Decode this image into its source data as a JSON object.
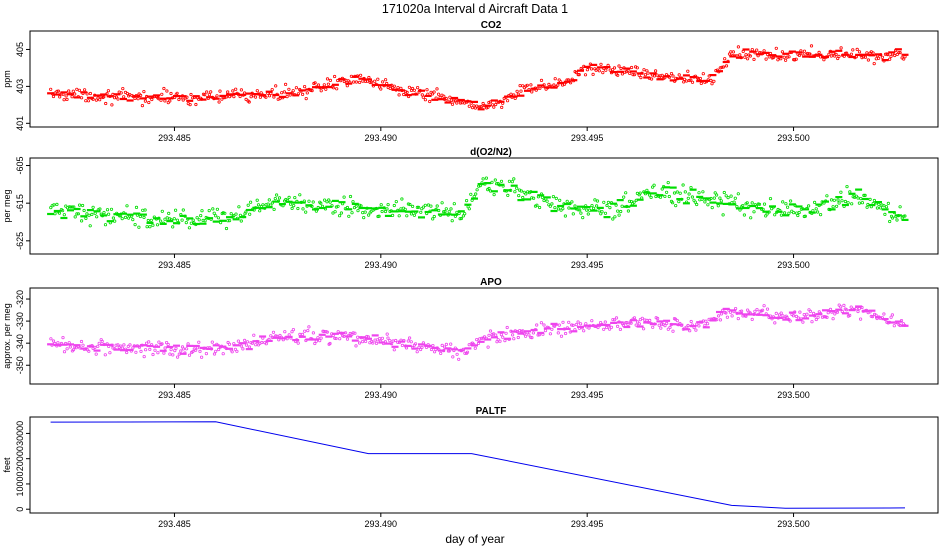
{
  "figure": {
    "title": "171020a   Interval d Aircraft Data 1",
    "xlabel": "day of year"
  },
  "chart_data": [
    {
      "type": "scatter",
      "title": "CO2",
      "ylabel": "ppm",
      "color": "#ff0000",
      "xlim": [
        293.4815,
        293.5035
      ],
      "ylim": [
        400.8,
        406.0
      ],
      "xticks": [
        293.485,
        293.49,
        293.495,
        293.5
      ],
      "xtick_labels": [
        "293.485",
        "293.490",
        "293.495",
        "293.500"
      ],
      "yticks": [
        401,
        403,
        405
      ],
      "ytick_labels": [
        "401",
        "403",
        "405"
      ],
      "x_start": 293.482,
      "x_end": 293.5027,
      "trend": [
        [
          293.482,
          402.6
        ],
        [
          293.484,
          402.4
        ],
        [
          293.486,
          402.4
        ],
        [
          293.4875,
          402.6
        ],
        [
          293.4885,
          402.9
        ],
        [
          293.4895,
          403.5
        ],
        [
          293.4905,
          402.9
        ],
        [
          293.4915,
          402.3
        ],
        [
          293.4925,
          401.9
        ],
        [
          293.4935,
          402.7
        ],
        [
          293.4945,
          403.3
        ],
        [
          293.495,
          404.0
        ],
        [
          293.4965,
          403.7
        ],
        [
          293.4975,
          403.4
        ],
        [
          293.498,
          403.3
        ],
        [
          293.4985,
          404.8
        ],
        [
          293.5005,
          404.7
        ],
        [
          293.5027,
          404.7
        ]
      ],
      "noise": 0.35
    },
    {
      "type": "scatter",
      "title": "d(O2/N2)",
      "ylabel": "per meg",
      "color": "#00dd00",
      "xlim": [
        293.4815,
        293.5035
      ],
      "ylim": [
        -628.5,
        -603.0
      ],
      "xticks": [
        293.485,
        293.49,
        293.495,
        293.5
      ],
      "xtick_labels": [
        "293.485",
        "293.490",
        "293.495",
        "293.500"
      ],
      "yticks": [
        -625,
        -615,
        -605
      ],
      "ytick_labels": [
        "-625",
        "-615",
        "-605"
      ],
      "x_start": 293.482,
      "x_end": 293.5027,
      "trend": [
        [
          293.482,
          -617
        ],
        [
          293.485,
          -619
        ],
        [
          293.4865,
          -619
        ],
        [
          293.4875,
          -614
        ],
        [
          293.489,
          -616
        ],
        [
          293.4905,
          -617
        ],
        [
          293.492,
          -618
        ],
        [
          293.4925,
          -609
        ],
        [
          293.4935,
          -613
        ],
        [
          293.4945,
          -616
        ],
        [
          293.4955,
          -617
        ],
        [
          293.4965,
          -612
        ],
        [
          293.4975,
          -613
        ],
        [
          293.499,
          -616
        ],
        [
          293.5005,
          -617
        ],
        [
          293.5015,
          -613
        ],
        [
          293.5027,
          -619
        ]
      ],
      "noise": 2.6
    },
    {
      "type": "scatter",
      "title": "APO",
      "ylabel": "approx. per meg",
      "color": "#ee44ee",
      "xlim": [
        293.4815,
        293.5035
      ],
      "ylim": [
        -358.5,
        -315.0
      ],
      "xticks": [
        293.485,
        293.49,
        293.495,
        293.5
      ],
      "xtick_labels": [
        "293.485",
        "293.490",
        "293.495",
        "293.500"
      ],
      "yticks": [
        -350,
        -340,
        -330,
        -320
      ],
      "ytick_labels": [
        "-350",
        "-340",
        "-330",
        "-320"
      ],
      "x_start": 293.482,
      "x_end": 293.5027,
      "trend": [
        [
          293.482,
          -341
        ],
        [
          293.485,
          -343
        ],
        [
          293.4865,
          -342
        ],
        [
          293.4875,
          -337
        ],
        [
          293.489,
          -337
        ],
        [
          293.4905,
          -340
        ],
        [
          293.492,
          -344
        ],
        [
          293.4925,
          -338
        ],
        [
          293.494,
          -334
        ],
        [
          293.4955,
          -332
        ],
        [
          293.4965,
          -330
        ],
        [
          293.4975,
          -333
        ],
        [
          293.4985,
          -326
        ],
        [
          293.5,
          -328
        ],
        [
          293.5015,
          -325
        ],
        [
          293.5027,
          -331
        ]
      ],
      "noise": 3.2
    },
    {
      "type": "line",
      "title": "PALTF",
      "ylabel": "feet",
      "color": "#0000ee",
      "xlim": [
        293.4815,
        293.5035
      ],
      "ylim": [
        -1500,
        36500
      ],
      "xticks": [
        293.485,
        293.49,
        293.495,
        293.5
      ],
      "xtick_labels": [
        "293.485",
        "293.490",
        "293.495",
        "293.500"
      ],
      "yticks": [
        0,
        10000,
        20000,
        30000
      ],
      "ytick_labels": [
        "0",
        "10000",
        "20000",
        "30000"
      ],
      "x": [
        293.482,
        293.486,
        293.4897,
        293.4922,
        293.4985,
        293.4998,
        293.5027
      ],
      "y": [
        34500,
        34600,
        22000,
        22000,
        1500,
        400,
        500
      ]
    }
  ]
}
